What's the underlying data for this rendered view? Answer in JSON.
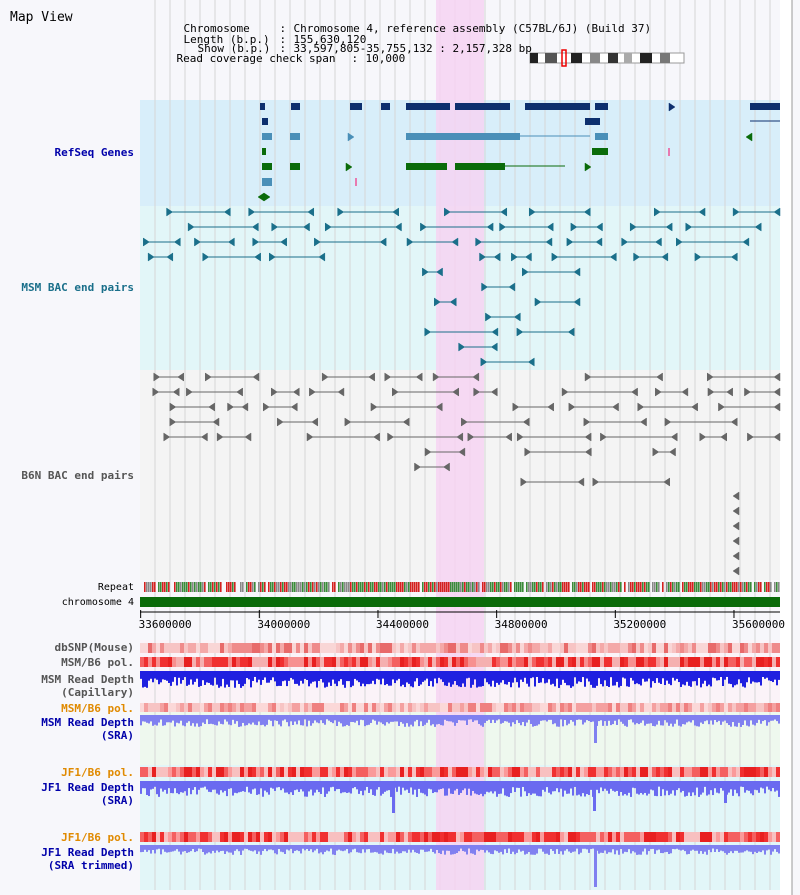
{
  "header": {
    "view_title": "Map View",
    "chromosome_label": "Chromosome",
    "chromosome_value": "Chromosome 4, reference assembly (C57BL/6J) (Build 37)",
    "length_label": "Length (b.p.)",
    "length_value": "155,630,120",
    "show_label": "Show (b.p.)",
    "show_value": "33,597,805-35,755,132 : 2,157,328 bp",
    "coverage_label": "Read coverage check span",
    "coverage_value": "10,000",
    "separator": ":"
  },
  "tracks": {
    "refseq": "RefSeq Genes",
    "msm_bac": "MSM BAC end pairs",
    "b6n_bac": "B6N BAC end pairs",
    "repeat": "Repeat",
    "chromosome": "chromosome 4",
    "dbsnp": "dbSNP(Mouse)",
    "msm_b6_pol": "MSM/B6 pol.",
    "msm_depth_cap_1": "MSM Read Depth",
    "msm_depth_cap_2": "(Capillary)",
    "msm_b6_pol_2": "MSM/B6 pol.",
    "msm_depth_sra_1": "MSM Read Depth",
    "msm_depth_sra_2": "(SRA)",
    "jf1_b6_pol": "JF1/B6 pol.",
    "jf1_depth_sra_1": "JF1 Read Depth",
    "jf1_depth_sra_2": "(SRA)",
    "jf1_b6_pol_2": "JF1/B6 pol.",
    "jf1_depth_trim_1": "JF1 Read Depth",
    "jf1_depth_trim_2": "(SRA trimmed)"
  },
  "axis": {
    "ticks": [
      {
        "label": "33600000",
        "value": 33600000
      },
      {
        "label": "34000000",
        "value": 34000000
      },
      {
        "label": "34400000",
        "value": 34400000
      },
      {
        "label": "34800000",
        "value": 34800000
      },
      {
        "label": "35200000",
        "value": 35200000
      },
      {
        "label": "35600000",
        "value": 35600000
      }
    ]
  },
  "colors": {
    "refseq_bg": "#d8eefa",
    "msm_bg": "#e2f6f8",
    "highlight": "#f6d4f2",
    "gene_dark": "#0d2f6e",
    "gene_mid": "#4a8fb8",
    "gene_green": "#0a6b0a",
    "bac_msm": "#1a6f8a",
    "bac_b6n": "#666666",
    "chrom_bar": "#0a6b0a"
  }
}
